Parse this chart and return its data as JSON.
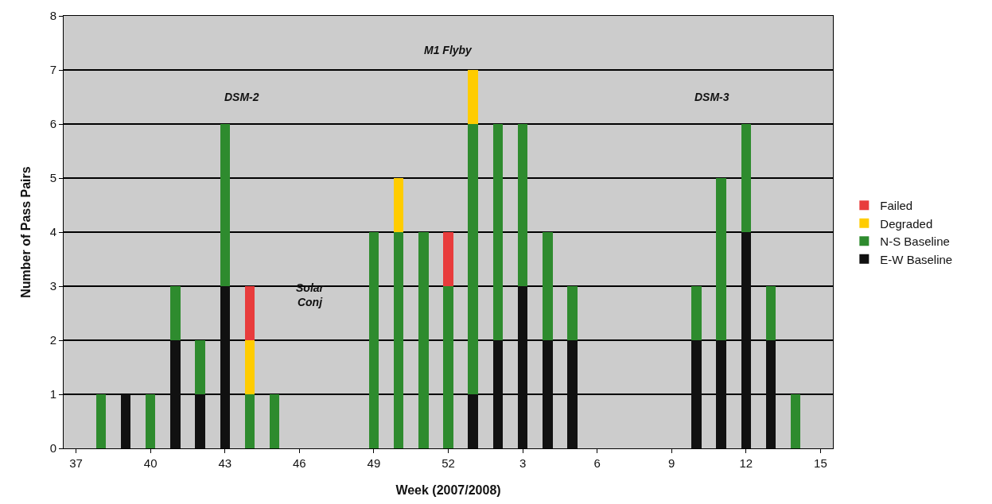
{
  "chart_data": {
    "type": "bar",
    "stacked": true,
    "xlabel": "Week (2007/2008)",
    "ylabel": "Number of Pass Pairs",
    "categories": [
      "37",
      null,
      null,
      "40",
      null,
      null,
      "43",
      null,
      null,
      "46",
      null,
      null,
      "49",
      null,
      null,
      "52",
      null,
      null,
      "3",
      null,
      null,
      "6",
      null,
      null,
      "9",
      null,
      null,
      "12",
      null,
      null,
      "15"
    ],
    "series": [
      {
        "name": "E-W Baseline",
        "color": "#111111",
        "values": [
          0,
          0,
          1,
          0,
          2,
          1,
          3,
          0,
          0,
          0,
          0,
          0,
          0,
          0,
          0,
          0,
          1,
          2,
          3,
          2,
          2,
          0,
          0,
          0,
          0,
          2,
          2,
          4,
          2,
          0,
          0
        ]
      },
      {
        "name": "N-S Baseline",
        "color": "#2e8b2e",
        "values": [
          0,
          1,
          0,
          1,
          1,
          1,
          3,
          1,
          1,
          0,
          0,
          0,
          4,
          4,
          4,
          3,
          5,
          4,
          3,
          2,
          1,
          0,
          0,
          0,
          0,
          1,
          3,
          2,
          1,
          1,
          0
        ]
      },
      {
        "name": "Degraded",
        "color": "#ffcc00",
        "values": [
          0,
          0,
          0,
          0,
          0,
          0,
          0,
          1,
          0,
          0,
          0,
          0,
          0,
          1,
          0,
          0,
          1,
          0,
          0,
          0,
          0,
          0,
          0,
          0,
          0,
          0,
          0,
          0,
          0,
          0,
          0
        ]
      },
      {
        "name": "Failed",
        "color": "#e83c3c",
        "values": [
          0,
          0,
          0,
          0,
          0,
          0,
          0,
          1,
          0,
          0,
          0,
          0,
          0,
          0,
          0,
          1,
          0,
          0,
          0,
          0,
          0,
          0,
          0,
          0,
          0,
          0,
          0,
          0,
          0,
          0,
          0
        ]
      }
    ],
    "ylim": [
      0,
      8
    ],
    "yticks": [
      0,
      1,
      2,
      3,
      4,
      5,
      6,
      7,
      8
    ],
    "grid": "y",
    "legend": "right",
    "annotations": [
      "DSM-2",
      "M1 Flyby",
      "DSM-3",
      "Solar Conj"
    ]
  }
}
